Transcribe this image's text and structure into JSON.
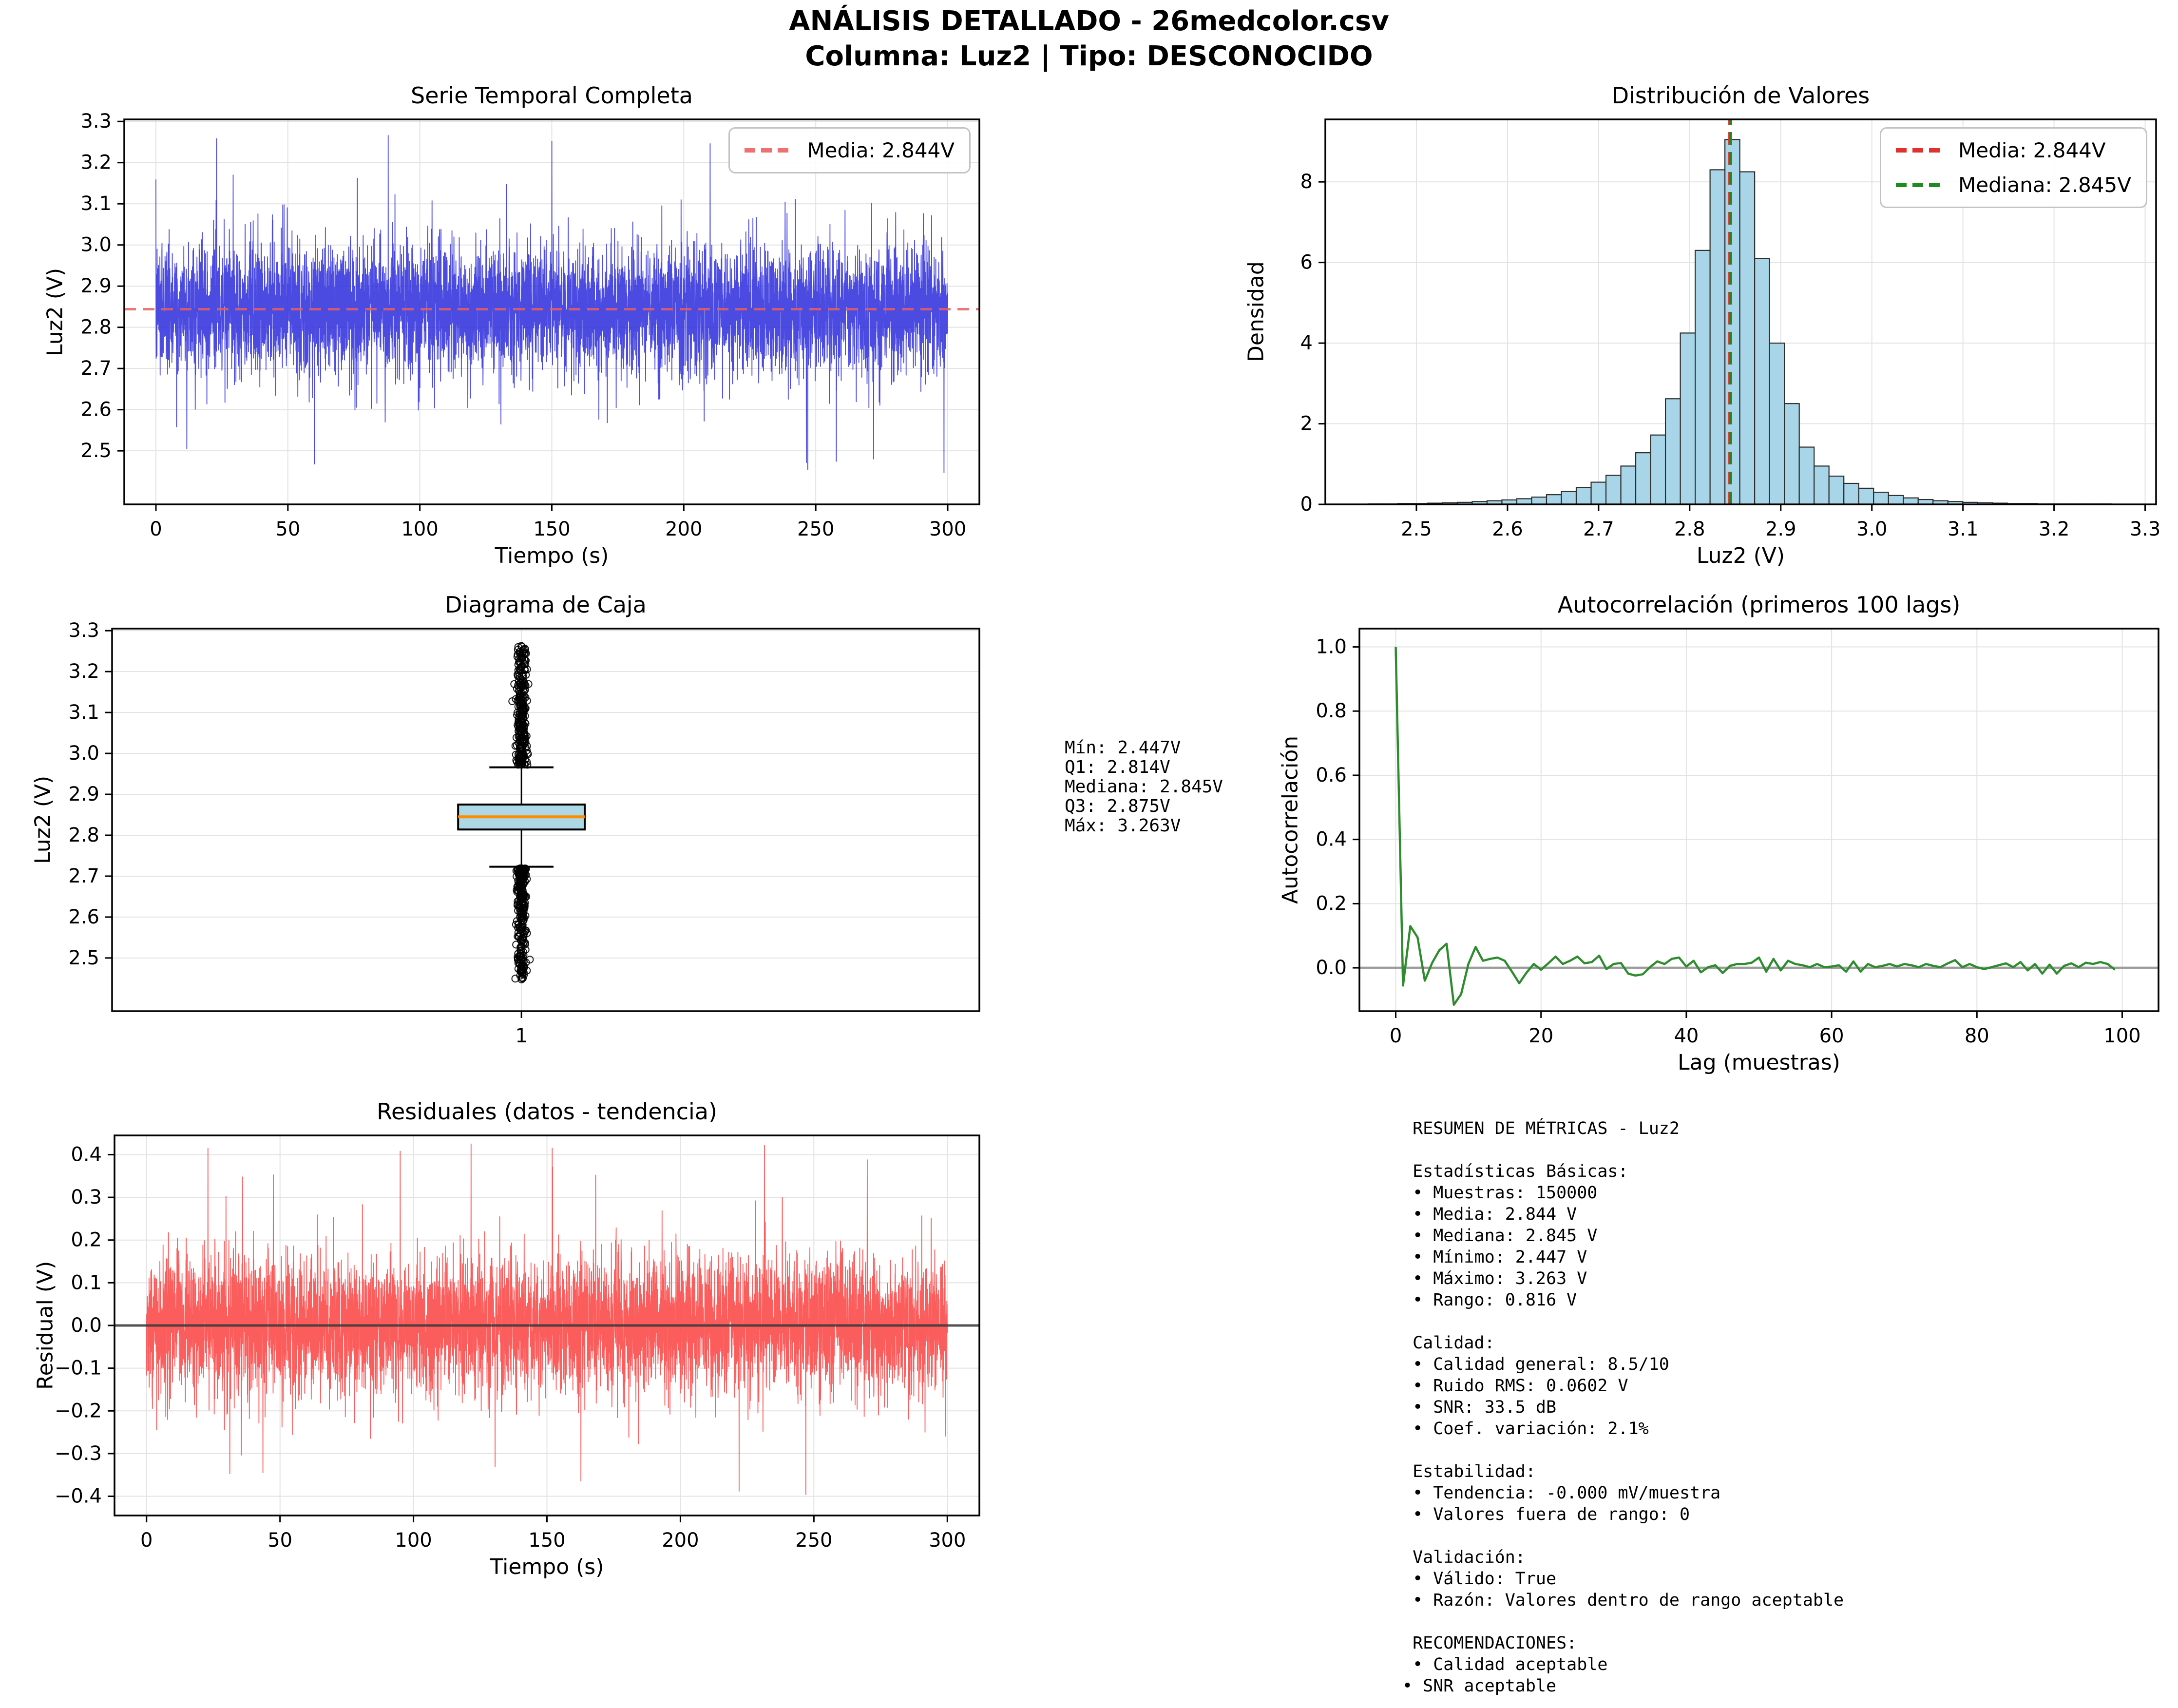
{
  "header": {
    "suptitle_line1": "ANÁLISIS DETALLADO - 26medcolor.csv",
    "suptitle_line2": "Columna: Luz2 | Tipo: DESCONOCIDO"
  },
  "chart_data": {
    "timeseries": {
      "type": "noise",
      "title": "Serie Temporal Completa",
      "xlabel": "Tiempo (s)",
      "ylabel": "Luz2 (V)",
      "xlim": [
        -12,
        312
      ],
      "ylim": [
        2.37,
        3.305
      ],
      "xtick_vals": [
        0,
        50,
        100,
        150,
        200,
        250,
        300
      ],
      "xtick_labels": [
        "0",
        "50",
        "100",
        "150",
        "200",
        "250",
        "300"
      ],
      "ytick_vals": [
        2.5,
        2.6,
        2.7,
        2.8,
        2.9,
        3.0,
        3.1,
        3.2,
        3.3
      ],
      "ytick_labels": [
        "2.5",
        "2.6",
        "2.7",
        "2.8",
        "2.9",
        "3.0",
        "3.1",
        "3.2",
        "3.3"
      ],
      "x_range": [
        0,
        300
      ],
      "n_points": 6000,
      "mean": 2.844,
      "core_sigma": 0.075,
      "tail_sigma": 0.135,
      "tail_prob": 0.035,
      "clip": [
        2.447,
        3.263
      ],
      "seed": 7,
      "color": "#2b2bdc",
      "opacity": 0.85,
      "extremes": [
        [
          23,
          3.258
        ],
        [
          60,
          2.468
        ],
        [
          88,
          3.266
        ],
        [
          150,
          3.252
        ],
        [
          210,
          3.246
        ],
        [
          247,
          2.455
        ]
      ],
      "hline": {
        "value": 2.844,
        "color": "#e86060",
        "dash": true,
        "width": 5
      },
      "legend": [
        {
          "label": "Media: 2.844V",
          "color": "#ef7070",
          "dash": true
        }
      ],
      "stats": {
        "mean": 2.844,
        "rms_noise": 0.0602,
        "min": 2.447,
        "max": 3.263,
        "samples": 150000
      }
    },
    "histogram": {
      "type": "hist",
      "title": "Distribución de Valores",
      "xlabel": "Luz2 (V)",
      "ylabel": "Densidad",
      "xlim": [
        2.4,
        3.312
      ],
      "ylim": [
        0,
        9.55
      ],
      "xtick_vals": [
        2.5,
        2.6,
        2.7,
        2.8,
        2.9,
        3.0,
        3.1,
        3.2,
        3.3
      ],
      "xtick_labels": [
        "2.5",
        "2.6",
        "2.7",
        "2.8",
        "2.9",
        "3.0",
        "3.1",
        "3.2",
        "3.3"
      ],
      "ytick_vals": [
        0,
        2,
        4,
        6,
        8
      ],
      "ytick_labels": [
        "0",
        "2",
        "4",
        "6",
        "8"
      ],
      "bin_start": 2.447,
      "bin_width": 0.01632,
      "densities": [
        0.01,
        0.01,
        0.02,
        0.02,
        0.03,
        0.04,
        0.05,
        0.07,
        0.09,
        0.11,
        0.14,
        0.18,
        0.24,
        0.32,
        0.42,
        0.55,
        0.72,
        0.95,
        1.28,
        1.72,
        2.62,
        4.25,
        6.3,
        8.3,
        9.05,
        8.25,
        6.1,
        4.0,
        2.5,
        1.42,
        0.95,
        0.7,
        0.52,
        0.4,
        0.3,
        0.22,
        0.16,
        0.12,
        0.09,
        0.07,
        0.05,
        0.04,
        0.03,
        0.02,
        0.02,
        0.01,
        0.01,
        0.01,
        0.01,
        0.01
      ],
      "bar_fill": "#a8d6e8",
      "bar_edge": "#2d2d2d",
      "vlines": [
        {
          "value": 2.844,
          "color": "#e03131",
          "dash": true,
          "width": 6
        },
        {
          "value": 2.845,
          "color": "#1e8c1e",
          "dash": true,
          "width": 6
        }
      ],
      "legend": [
        {
          "label": "Media: 2.844V",
          "color": "#e03131",
          "dash": true
        },
        {
          "label": "Mediana: 2.845V",
          "color": "#1e8c1e",
          "dash": true
        }
      ]
    },
    "boxplot": {
      "type": "box",
      "title": "Diagrama de Caja",
      "ylabel": "Luz2 (V)",
      "xlim": [
        0,
        2
      ],
      "ylim": [
        2.37,
        3.305
      ],
      "xtick_vals": [
        0.944
      ],
      "xtick_labels": [
        "1"
      ],
      "ytick_vals": [
        2.5,
        2.6,
        2.7,
        2.8,
        2.9,
        3.0,
        3.1,
        3.2,
        3.3
      ],
      "ytick_labels": [
        "2.5",
        "2.6",
        "2.7",
        "2.8",
        "2.9",
        "3.0",
        "3.1",
        "3.2",
        "3.3"
      ],
      "q1": 2.814,
      "median": 2.845,
      "q3": 2.875,
      "whisker_low": 2.723,
      "whisker_high": 2.966,
      "min": 2.447,
      "max": 3.263,
      "position": 0.944,
      "box_halfwidth": 0.146,
      "cap_halfwidth": 0.074,
      "box_fill": "#add8e6",
      "median_color": "#ff8c00",
      "n_outliers_top": 280,
      "n_outliers_bottom": 260,
      "seed": 11
    },
    "autocorr": {
      "type": "line",
      "title": "Autocorrelación (primeros 100 lags)",
      "xlabel": "Lag (muestras)",
      "ylabel": "Autocorrelación",
      "xlim": [
        -5,
        105
      ],
      "ylim": [
        -0.135,
        1.057
      ],
      "xtick_vals": [
        0,
        20,
        40,
        60,
        80,
        100
      ],
      "xtick_labels": [
        "0",
        "20",
        "40",
        "60",
        "80",
        "100"
      ],
      "ytick_vals": [
        0.0,
        0.2,
        0.4,
        0.6,
        0.8,
        1.0
      ],
      "ytick_labels": [
        "0.0",
        "0.2",
        "0.4",
        "0.6",
        "0.8",
        "1.0"
      ],
      "color": "#2e8b2e",
      "hline": {
        "value": 0,
        "color": "#909090",
        "dash": false,
        "width": 5
      },
      "values": [
        1.0,
        -0.055,
        0.13,
        0.095,
        -0.04,
        0.015,
        0.055,
        0.075,
        -0.115,
        -0.082,
        0.012,
        0.065,
        0.022,
        0.028,
        0.032,
        0.022,
        -0.012,
        -0.048,
        -0.015,
        0.012,
        -0.006,
        0.014,
        0.035,
        0.012,
        0.022,
        0.035,
        0.014,
        0.018,
        0.038,
        -0.004,
        0.012,
        0.015,
        -0.018,
        -0.024,
        -0.02,
        0.002,
        0.02,
        0.012,
        0.028,
        0.032,
        0.004,
        0.022,
        -0.014,
        0.002,
        0.008,
        -0.016,
        0.006,
        0.012,
        0.012,
        0.016,
        0.032,
        -0.012,
        0.028,
        -0.008,
        0.022,
        0.012,
        0.008,
        0.002,
        0.012,
        0.002,
        0.004,
        0.008,
        -0.012,
        0.02,
        -0.012,
        0.012,
        0.002,
        0.006,
        0.012,
        0.004,
        0.012,
        0.008,
        0.002,
        0.012,
        0.006,
        0.002,
        0.014,
        0.024,
        0.002,
        0.012,
        0.002,
        -0.004,
        0.002,
        0.008,
        0.014,
        0.002,
        0.018,
        -0.008,
        0.012,
        -0.018,
        0.01,
        -0.018,
        0.006,
        0.014,
        0.002,
        0.016,
        0.012,
        0.018,
        0.012,
        -0.006
      ]
    },
    "residuals": {
      "type": "noise",
      "title": "Residuales (datos - tendencia)",
      "xlabel": "Tiempo (s)",
      "ylabel": "Residual (V)",
      "xlim": [
        -12,
        312
      ],
      "ylim": [
        -0.445,
        0.445
      ],
      "xtick_vals": [
        0,
        50,
        100,
        150,
        200,
        250,
        300
      ],
      "xtick_labels": [
        "0",
        "50",
        "100",
        "150",
        "200",
        "250",
        "300"
      ],
      "ytick_vals": [
        -0.4,
        -0.3,
        -0.2,
        -0.1,
        0.0,
        0.1,
        0.2,
        0.3,
        0.4
      ],
      "ytick_labels": [
        "−0.4",
        "−0.3",
        "−0.2",
        "−0.1",
        "0.0",
        "0.1",
        "0.2",
        "0.3",
        "0.4"
      ],
      "x_range": [
        0,
        300
      ],
      "n_points": 6000,
      "mean": 0,
      "core_sigma": 0.075,
      "tail_sigma": 0.135,
      "tail_prob": 0.05,
      "clip": [
        -0.405,
        0.425
      ],
      "seed": 23,
      "color": "#fb4b4b",
      "opacity": 0.9,
      "extremes": [
        [
          23,
          0.415
        ],
        [
          95,
          0.408
        ],
        [
          152,
          0.415
        ],
        [
          222,
          -0.388
        ],
        [
          247,
          -0.396
        ],
        [
          270,
          0.388
        ]
      ],
      "hline": {
        "value": 0,
        "color": "#3a3a3a",
        "dash": false,
        "width": 5
      }
    }
  },
  "stats_panel": {
    "text": "Mín: 2.447V\nQ1: 2.814V\nMediana: 2.845V\nQ3: 2.875V\nMáx: 3.263V"
  },
  "metrics_panel": {
    "text": " RESUMEN DE MÉTRICAS - Luz2\n\n Estadísticas Básicas:\n • Muestras: 150000\n • Media: 2.844 V\n • Mediana: 2.845 V\n • Mínimo: 2.447 V\n • Máximo: 3.263 V\n • Rango: 0.816 V\n\n Calidad:\n • Calidad general: 8.5/10\n • Ruido RMS: 0.0602 V\n • SNR: 33.5 dB\n • Coef. variación: 2.1%\n\n Estabilidad:\n • Tendencia: -0.000 mV/muestra\n • Valores fuera de rango: 0\n\n Validación:\n • Válido: True\n • Razón: Valores dentro de rango aceptable\n\n RECOMENDACIONES:\n • Calidad aceptable",
    "last_line": "• SNR aceptable"
  }
}
